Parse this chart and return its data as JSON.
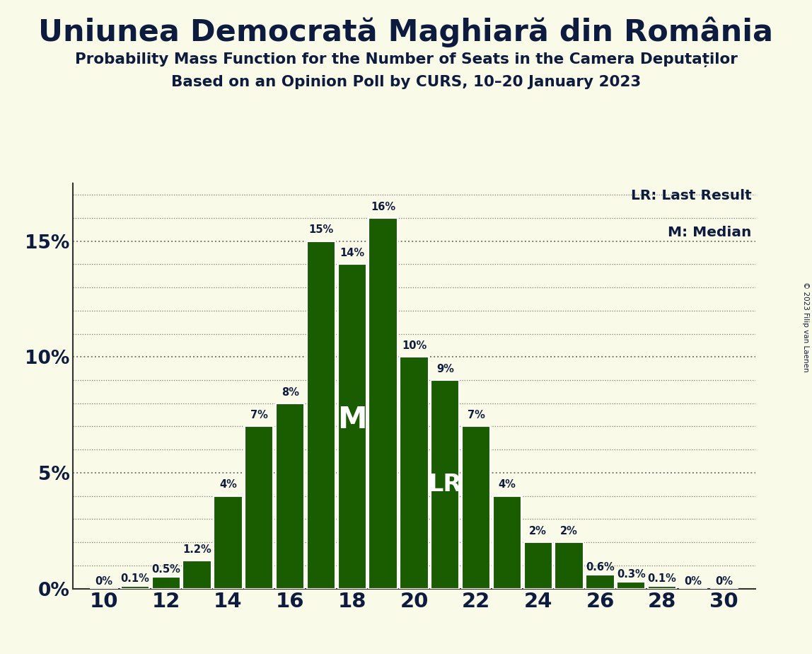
{
  "title": "Uniunea Democrată Maghiară din România",
  "subtitle1": "Probability Mass Function for the Number of Seats in the Camera Deputaților",
  "subtitle2": "Based on an Opinion Poll by CURS, 10–20 January 2023",
  "copyright": "© 2023 Filip van Laenen",
  "seats": [
    10,
    11,
    12,
    13,
    14,
    15,
    16,
    17,
    18,
    19,
    20,
    21,
    22,
    23,
    24,
    25,
    26,
    27,
    28,
    29,
    30
  ],
  "probabilities": [
    0.0,
    0.1,
    0.5,
    1.2,
    4.0,
    7.0,
    8.0,
    15.0,
    14.0,
    16.0,
    10.0,
    9.0,
    7.0,
    4.0,
    2.0,
    2.0,
    0.6,
    0.3,
    0.1,
    0.0,
    0.0
  ],
  "labels": [
    "0%",
    "0.1%",
    "0.5%",
    "1.2%",
    "4%",
    "7%",
    "8%",
    "15%",
    "14%",
    "16%",
    "10%",
    "9%",
    "7%",
    "4%",
    "2%",
    "2%",
    "0.6%",
    "0.3%",
    "0.1%",
    "0%",
    "0%"
  ],
  "bar_color": "#1a5c00",
  "background_color": "#fafae8",
  "text_color": "#0d1b3e",
  "median_seat": 18,
  "last_result_seat": 21,
  "legend_lr": "LR: Last Result",
  "legend_m": "M: Median",
  "yticks": [
    0,
    5,
    10,
    15
  ],
  "ylim": [
    0,
    17.5
  ],
  "xlim": [
    9.0,
    31.0
  ],
  "grid_lines": [
    1,
    2,
    3,
    4,
    5,
    6,
    7,
    8,
    9,
    10,
    11,
    12,
    13,
    14,
    15,
    16,
    17
  ]
}
